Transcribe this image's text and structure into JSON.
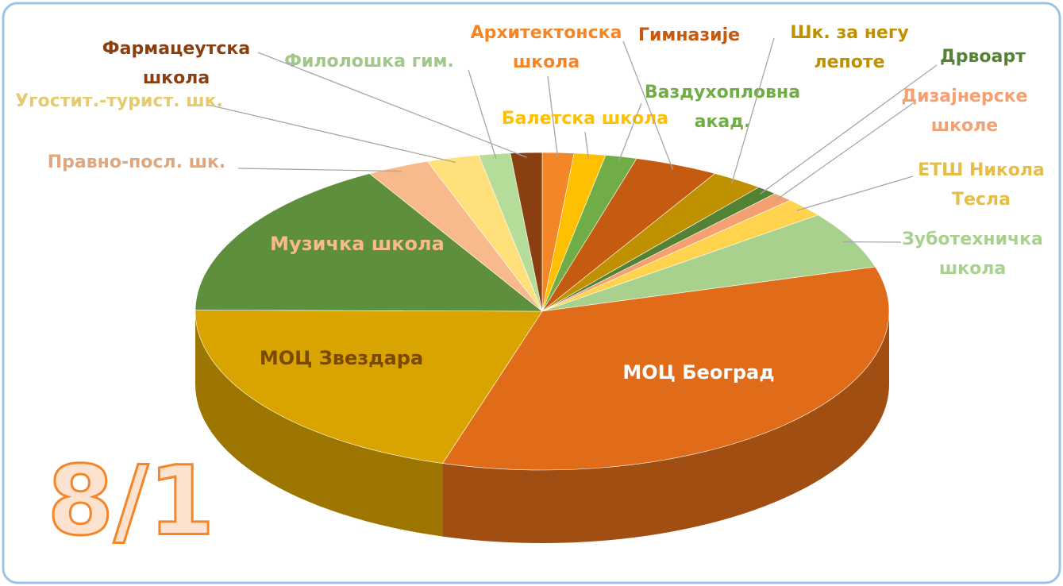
{
  "chart_data": {
    "type": "pie3d",
    "annotation": "8/1",
    "categories": [
      "Архитектонска школа",
      "Балетска школа",
      "Ваздухопловна акад.",
      "Гимназије",
      "Шк. за негу лепоте",
      "Дрвоарт",
      "Дизајнерске школе",
      "ЕТШ Никола Тесла",
      "Зуботехничка школа",
      "МОЦ Београд",
      "МОЦ Звездара",
      "Музичка школа",
      "Правно-посл. шк.",
      "Угостит.-турист. шк.",
      "Филолошка гим.",
      "Фармацеутска школа"
    ],
    "values": [
      1.5,
      1.5,
      1.5,
      4,
      2.5,
      1,
      1,
      2,
      6,
      35,
      21,
      17,
      3,
      2.5,
      1.5,
      1.5
    ],
    "colors": [
      "#f4862a",
      "#ffc000",
      "#70ad47",
      "#c55a11",
      "#bf9000",
      "#548235",
      "#f4a070",
      "#ffd34d",
      "#a9d18e",
      "#e06c1a",
      "#d9a400",
      "#5e8f3c",
      "#f8b98c",
      "#ffe07a",
      "#b5dc99",
      "#8a3f10"
    ]
  }
}
